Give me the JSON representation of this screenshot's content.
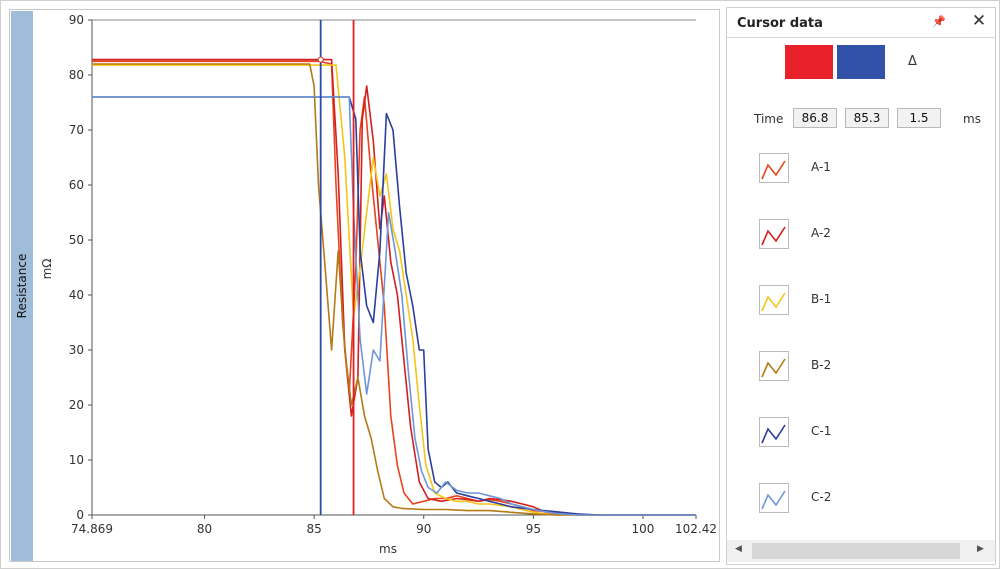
{
  "chart_data": {
    "type": "line",
    "ylabel": "Resistance",
    "yunit": "mΩ",
    "xlabel": "ms",
    "xlim": [
      74.869,
      102.42
    ],
    "ylim": [
      0,
      90
    ],
    "x_ticks": [
      "74.869",
      "80",
      "85",
      "90",
      "95",
      "100",
      "102.42"
    ],
    "y_ticks": [
      "0",
      "10",
      "20",
      "30",
      "40",
      "50",
      "60",
      "70",
      "80",
      "90"
    ],
    "cursors": [
      {
        "name": "red",
        "x": 86.8,
        "color": "#e02020"
      },
      {
        "name": "blue",
        "x": 85.3,
        "color": "#2b4aa6"
      }
    ],
    "series": [
      {
        "name": "A-1",
        "color": "#e8441c",
        "points": [
          [
            74.869,
            82.5
          ],
          [
            85.2,
            82.5
          ],
          [
            85.8,
            82
          ],
          [
            86.0,
            60
          ],
          [
            86.3,
            35
          ],
          [
            86.6,
            22
          ],
          [
            86.9,
            45
          ],
          [
            87.1,
            70
          ],
          [
            87.3,
            76
          ],
          [
            87.6,
            62
          ],
          [
            87.9,
            50
          ],
          [
            88.2,
            38
          ],
          [
            88.5,
            18
          ],
          [
            88.8,
            9
          ],
          [
            89.1,
            4
          ],
          [
            89.5,
            2
          ],
          [
            90.0,
            2.5
          ],
          [
            90.5,
            3
          ],
          [
            91.0,
            3
          ],
          [
            91.5,
            3.5
          ],
          [
            92.0,
            3
          ],
          [
            92.5,
            2.5
          ],
          [
            93.0,
            2.8
          ],
          [
            93.5,
            2.5
          ],
          [
            94.0,
            2
          ],
          [
            94.5,
            1.5
          ],
          [
            95.0,
            0.8
          ],
          [
            96.0,
            0.5
          ],
          [
            97.0,
            0
          ],
          [
            102.42,
            0
          ]
        ]
      },
      {
        "name": "A-2",
        "color": "#d21f1f",
        "points": [
          [
            74.869,
            82.8
          ],
          [
            85.8,
            82.8
          ],
          [
            86.1,
            62
          ],
          [
            86.4,
            30
          ],
          [
            86.7,
            18
          ],
          [
            87.0,
            25
          ],
          [
            87.2,
            72
          ],
          [
            87.4,
            78
          ],
          [
            87.7,
            68
          ],
          [
            88.0,
            52
          ],
          [
            88.2,
            58
          ],
          [
            88.5,
            46
          ],
          [
            88.8,
            40
          ],
          [
            89.1,
            28
          ],
          [
            89.4,
            16
          ],
          [
            89.8,
            6
          ],
          [
            90.2,
            3
          ],
          [
            90.8,
            2.5
          ],
          [
            91.5,
            3
          ],
          [
            92.0,
            2.8
          ],
          [
            92.5,
            2.5
          ],
          [
            93.0,
            3
          ],
          [
            93.5,
            2.8
          ],
          [
            94.0,
            2.5
          ],
          [
            94.5,
            2
          ],
          [
            95.0,
            1.5
          ],
          [
            95.5,
            0.6
          ],
          [
            96.0,
            0.2
          ],
          [
            97.0,
            0
          ],
          [
            102.42,
            0
          ]
        ]
      },
      {
        "name": "B-1",
        "color": "#f4c518",
        "points": [
          [
            74.869,
            81.8
          ],
          [
            86.0,
            81.8
          ],
          [
            86.4,
            65
          ],
          [
            86.8,
            36
          ],
          [
            87.1,
            45
          ],
          [
            87.4,
            55
          ],
          [
            87.7,
            65
          ],
          [
            88.0,
            58
          ],
          [
            88.3,
            62
          ],
          [
            88.6,
            52
          ],
          [
            88.9,
            48
          ],
          [
            89.2,
            40
          ],
          [
            89.5,
            32
          ],
          [
            89.8,
            20
          ],
          [
            90.1,
            9
          ],
          [
            90.5,
            4
          ],
          [
            91.0,
            3
          ],
          [
            91.5,
            2.5
          ],
          [
            92.0,
            2.5
          ],
          [
            92.5,
            2
          ],
          [
            93.0,
            2
          ],
          [
            94.0,
            1.5
          ],
          [
            95.0,
            0.5
          ],
          [
            96.0,
            0
          ],
          [
            102.42,
            0
          ]
        ]
      },
      {
        "name": "B-2",
        "color": "#b57a16",
        "points": [
          [
            74.869,
            82.0
          ],
          [
            84.8,
            82.0
          ],
          [
            85.0,
            78
          ],
          [
            85.2,
            60
          ],
          [
            85.5,
            45
          ],
          [
            85.8,
            30
          ],
          [
            86.1,
            48
          ],
          [
            86.4,
            30
          ],
          [
            86.7,
            20
          ],
          [
            87.0,
            25
          ],
          [
            87.3,
            18
          ],
          [
            87.6,
            14
          ],
          [
            87.9,
            8
          ],
          [
            88.2,
            3
          ],
          [
            88.6,
            1.5
          ],
          [
            89.0,
            1.2
          ],
          [
            90.0,
            1
          ],
          [
            91.0,
            1
          ],
          [
            92.0,
            0.8
          ],
          [
            93.0,
            0.8
          ],
          [
            94.0,
            0.5
          ],
          [
            95.0,
            0.2
          ],
          [
            96.0,
            0
          ],
          [
            102.42,
            0
          ]
        ]
      },
      {
        "name": "C-1",
        "color": "#2b3f9e",
        "points": [
          [
            74.869,
            76.0
          ],
          [
            86.6,
            76.0
          ],
          [
            86.9,
            72
          ],
          [
            87.1,
            48
          ],
          [
            87.4,
            38
          ],
          [
            87.7,
            35
          ],
          [
            88.0,
            48
          ],
          [
            88.3,
            73
          ],
          [
            88.6,
            70
          ],
          [
            88.9,
            56
          ],
          [
            89.2,
            44
          ],
          [
            89.5,
            38
          ],
          [
            89.8,
            30
          ],
          [
            90.0,
            30
          ],
          [
            90.2,
            12
          ],
          [
            90.5,
            6
          ],
          [
            90.8,
            5
          ],
          [
            91.1,
            6
          ],
          [
            91.5,
            4
          ],
          [
            92.0,
            3.5
          ],
          [
            92.5,
            3
          ],
          [
            93.0,
            2.5
          ],
          [
            93.5,
            2
          ],
          [
            94.0,
            1.5
          ],
          [
            95.0,
            1
          ],
          [
            96.0,
            0.6
          ],
          [
            97.0,
            0.2
          ],
          [
            98.0,
            0
          ],
          [
            102.42,
            0
          ]
        ]
      },
      {
        "name": "C-2",
        "color": "#6f96d6",
        "points": [
          [
            74.869,
            76.0
          ],
          [
            86.6,
            76.0
          ],
          [
            86.8,
            55
          ],
          [
            87.1,
            32
          ],
          [
            87.4,
            22
          ],
          [
            87.7,
            30
          ],
          [
            88.0,
            28
          ],
          [
            88.4,
            55
          ],
          [
            88.7,
            48
          ],
          [
            89.0,
            40
          ],
          [
            89.3,
            26
          ],
          [
            89.6,
            14
          ],
          [
            89.9,
            8
          ],
          [
            90.2,
            5
          ],
          [
            90.6,
            4
          ],
          [
            91.0,
            6
          ],
          [
            91.5,
            4.5
          ],
          [
            92.0,
            4
          ],
          [
            92.5,
            4
          ],
          [
            93.0,
            3.5
          ],
          [
            93.5,
            3
          ],
          [
            94.0,
            2
          ],
          [
            95.0,
            1
          ],
          [
            96.0,
            0.3
          ],
          [
            97.0,
            0
          ],
          [
            102.42,
            0
          ]
        ]
      }
    ]
  },
  "panel": {
    "title": "Cursor data",
    "pin_icon": "pin-icon",
    "close_icon": "close-icon",
    "close_glyph": "✕",
    "pin_glyph": "📌",
    "cursor_colors": [
      "#e8212b",
      "#3251a8"
    ],
    "delta_label": "Δ",
    "time_label": "Time",
    "time_values": [
      "86.8",
      "85.3",
      "1.5"
    ],
    "time_unit": "ms",
    "legend": [
      {
        "name": "A-1",
        "color": "#e8441c"
      },
      {
        "name": "A-2",
        "color": "#d21f1f"
      },
      {
        "name": "B-1",
        "color": "#f4c518"
      },
      {
        "name": "B-2",
        "color": "#b57a16"
      },
      {
        "name": "C-1",
        "color": "#2b3f9e"
      },
      {
        "name": "C-2",
        "color": "#6f96d6"
      }
    ],
    "scroll_left": "◀",
    "scroll_right": "▶"
  }
}
